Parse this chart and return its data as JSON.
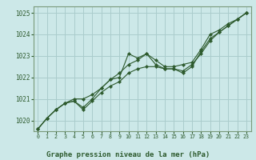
{
  "title": "Graphe pression niveau de la mer (hPa)",
  "bg_color": "#cce8e8",
  "plot_bg_color": "#cce8e8",
  "grid_color": "#aacccc",
  "line_color": "#2d5a2d",
  "border_color": "#7a9a7a",
  "xlim": [
    -0.5,
    23.5
  ],
  "ylim": [
    1019.5,
    1025.3
  ],
  "yticks": [
    1020,
    1021,
    1022,
    1023,
    1024,
    1025
  ],
  "xticks": [
    0,
    1,
    2,
    3,
    4,
    5,
    6,
    7,
    8,
    9,
    10,
    11,
    12,
    13,
    14,
    15,
    16,
    17,
    18,
    19,
    20,
    21,
    22,
    23
  ],
  "series": [
    [
      1019.6,
      1020.1,
      1020.5,
      1020.8,
      1020.9,
      1020.6,
      1021.0,
      1021.5,
      1021.9,
      1022.0,
      1023.1,
      1022.9,
      1023.1,
      1022.6,
      1022.4,
      1022.4,
      1022.2,
      1022.5,
      1023.2,
      1023.8,
      1024.1,
      1024.4,
      1024.7,
      1025.0
    ],
    [
      1019.6,
      1020.1,
      1020.5,
      1020.8,
      1020.9,
      1020.5,
      1020.9,
      1021.3,
      1021.6,
      1021.8,
      1022.2,
      1022.4,
      1022.5,
      1022.5,
      1022.4,
      1022.4,
      1022.3,
      1022.6,
      1023.1,
      1023.7,
      1024.1,
      1024.4,
      1024.7,
      1025.0
    ],
    [
      1019.6,
      1020.1,
      1020.5,
      1020.8,
      1021.0,
      1021.0,
      1021.2,
      1021.5,
      1021.9,
      1022.2,
      1022.6,
      1022.8,
      1023.1,
      1022.8,
      1022.5,
      1022.5,
      1022.6,
      1022.7,
      1023.3,
      1024.0,
      1024.2,
      1024.5,
      1024.7,
      1025.0
    ]
  ],
  "title_fontsize": 6.5,
  "tick_fontsize": 5.5,
  "xtick_fontsize": 4.8
}
